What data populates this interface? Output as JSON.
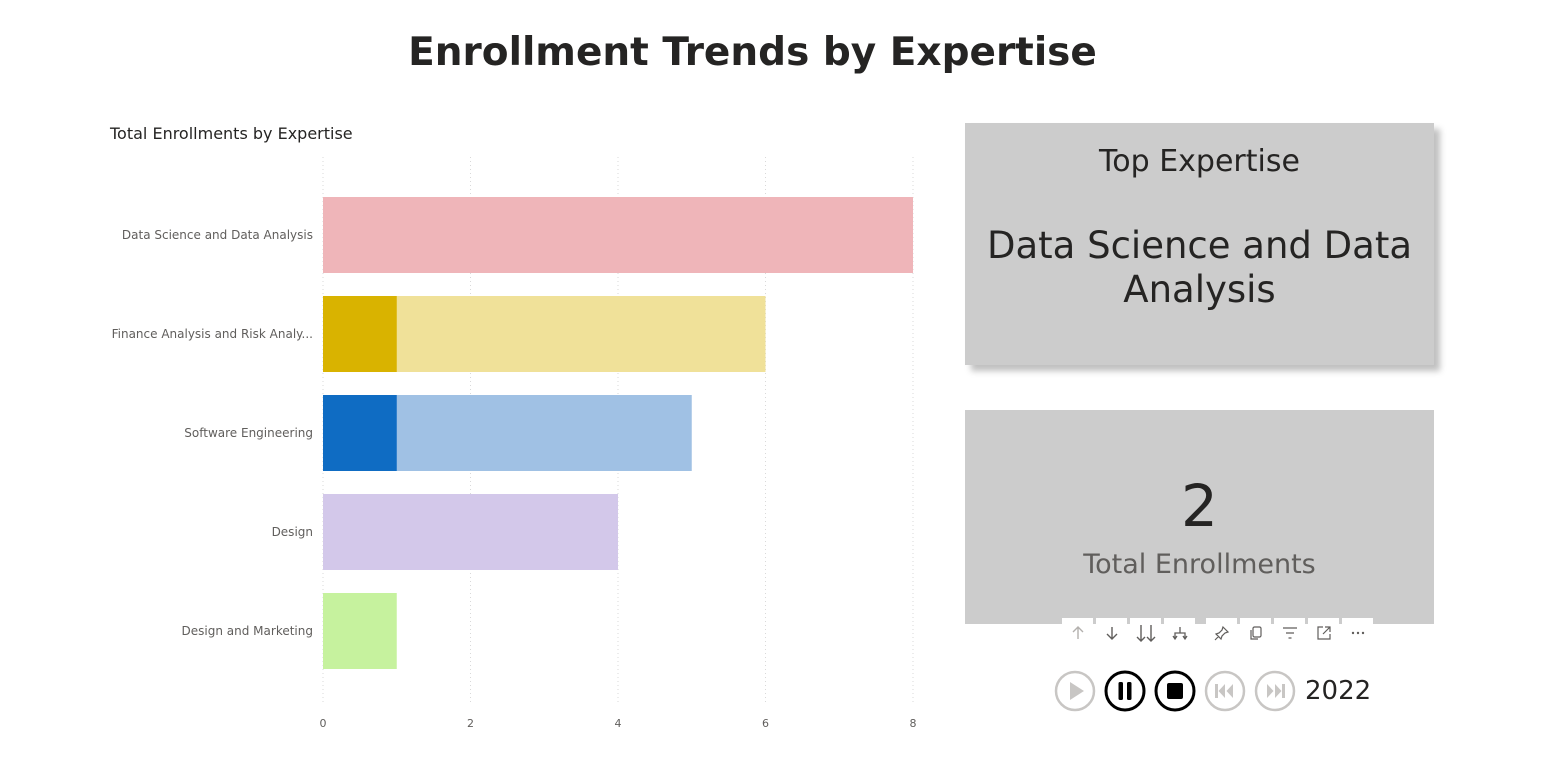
{
  "page": {
    "title": "Enrollment Trends by Expertise"
  },
  "chart_data": {
    "type": "bar",
    "orientation": "horizontal",
    "title": "Total Enrollments by Expertise",
    "categories": [
      "Data Science and Data Analysis",
      "Finance Analysis and Risk Analy...",
      "Software Engineering",
      "Design",
      "Design and Marketing"
    ],
    "series": [
      {
        "values": [
          8,
          6,
          5,
          4,
          1
        ]
      },
      {
        "values": [
          0,
          1,
          1,
          0,
          0
        ]
      }
    ],
    "colors": {
      "base": [
        "#efb5b9",
        "#f0e199",
        "#a0c1e4",
        "#d3c8ea",
        "#c6f29e"
      ],
      "highlight": [
        "#e26d79",
        "#d9b300",
        "#0f6cc3",
        "#9b86d0",
        "#83d73c"
      ]
    },
    "xticks": [
      "0",
      "2",
      "4",
      "6",
      "8"
    ],
    "xlim": [
      0,
      8
    ],
    "grid": "vertical dotted",
    "xlabel": "",
    "ylabel": ""
  },
  "top_card": {
    "label": "Top Expertise",
    "value": "Data Science and Data Analysis"
  },
  "kpi_card": {
    "value": "2",
    "label": "Total Enrollments"
  },
  "toolbar": {
    "icons": [
      "arrow-up-icon",
      "arrow-down-icon",
      "double-arrow-down-icon",
      "expand-hierarchy-icon",
      "pin-icon",
      "copy-icon",
      "filter-icon",
      "focus-mode-icon",
      "more-options-icon"
    ]
  },
  "player": {
    "year": "2022",
    "state": "playing"
  }
}
